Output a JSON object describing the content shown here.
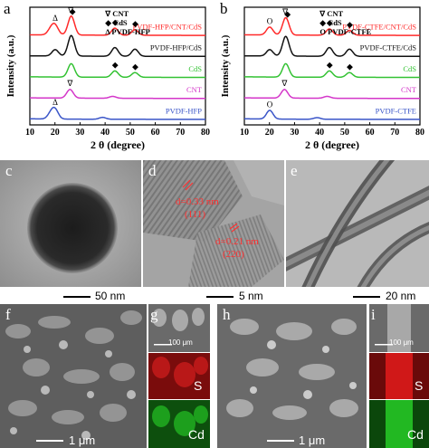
{
  "figure": {
    "panels": {
      "a": "a",
      "b": "b",
      "c": "c",
      "d": "d",
      "e": "e",
      "f": "f",
      "g": "g",
      "h": "h",
      "i": "i"
    },
    "scalebars": {
      "c": "50 nm",
      "d": "5 nm",
      "e": "20 nm",
      "f": "1 μm",
      "g": "100 μm",
      "h": "1 μm",
      "i": "100 μm"
    },
    "hrtem": {
      "label1": "d=0.33 nm",
      "plane1": "(111)",
      "label2": "d=0.21 nm",
      "plane2": "(220)"
    },
    "element_maps": {
      "s": "S",
      "cd": "Cd"
    },
    "colors": {
      "red": "#ff2a2a",
      "black": "#111111",
      "green": "#33c233",
      "magenta": "#d436c9",
      "blue": "#3a55c8",
      "sulfur_map": "#c01a1a",
      "cadmium_map": "#1fa81f"
    }
  },
  "chart_data": [
    {
      "type": "line",
      "panel": "a",
      "xlabel": "2 θ (degree)",
      "ylabel": "Intensity (a.u.)",
      "xlim": [
        10,
        80
      ],
      "xticks": [
        10,
        20,
        30,
        40,
        50,
        60,
        70,
        80
      ],
      "legend": [
        "CNT",
        "CdS",
        "PVDF-HFP"
      ],
      "legend_symbols": [
        "∇",
        "◆",
        "Δ"
      ],
      "series": [
        {
          "name": "PVDF-HFP/CNT/CdS",
          "color": "#ff2a2a",
          "offset": 4,
          "peaks": [
            [
              18.4,
              0.35
            ],
            [
              20.1,
              0.55
            ],
            [
              26.5,
              1.2
            ],
            [
              43.9,
              0.45
            ],
            [
              51.9,
              0.35
            ]
          ]
        },
        {
          "name": "PVDF-HFP/CdS",
          "color": "#111111",
          "offset": 3,
          "peaks": [
            [
              20.1,
              0.4
            ],
            [
              26.5,
              1.3
            ],
            [
              43.9,
              0.55
            ],
            [
              51.9,
              0.45
            ]
          ]
        },
        {
          "name": "CdS",
          "color": "#33c233",
          "offset": 2,
          "peaks": [
            [
              26.5,
              0.85
            ],
            [
              43.9,
              0.4
            ],
            [
              51.9,
              0.3
            ]
          ]
        },
        {
          "name": "CNT",
          "color": "#d436c9",
          "offset": 1,
          "peaks": [
            [
              26.0,
              0.55
            ],
            [
              43.0,
              0.12
            ]
          ]
        },
        {
          "name": "PVDF-HFP",
          "color": "#3a55c8",
          "offset": 0,
          "peaks": [
            [
              18.4,
              0.35
            ],
            [
              20.1,
              0.55
            ],
            [
              39.0,
              0.12
            ]
          ]
        }
      ],
      "markers": [
        {
          "symbol": "Δ",
          "x": 20.1,
          "series": "PVDF-HFP/CNT/CdS"
        },
        {
          "symbol": "∇",
          "x": 26.3,
          "series": "PVDF-HFP/CNT/CdS"
        },
        {
          "symbol": "◆",
          "x": 27.0,
          "series": "PVDF-HFP/CNT/CdS"
        },
        {
          "symbol": "◆",
          "x": 44.0,
          "series": "PVDF-HFP/CNT/CdS"
        },
        {
          "symbol": "◆",
          "x": 52.0,
          "series": "PVDF-HFP/CNT/CdS"
        },
        {
          "symbol": "◆",
          "x": 44.0,
          "series": "CdS"
        },
        {
          "symbol": "◆",
          "x": 52.0,
          "series": "CdS"
        },
        {
          "symbol": "∇",
          "x": 26.0,
          "series": "CNT"
        },
        {
          "symbol": "Δ",
          "x": 20.1,
          "series": "PVDF-HFP"
        }
      ]
    },
    {
      "type": "line",
      "panel": "b",
      "xlabel": "2 θ (degree)",
      "ylabel": "Intensity (a.u.)",
      "xlim": [
        10,
        80
      ],
      "xticks": [
        10,
        20,
        30,
        40,
        50,
        60,
        70,
        80
      ],
      "legend": [
        "CNT",
        "CdS",
        "PVDF-CTFE"
      ],
      "legend_symbols": [
        "∇",
        "◆",
        "O"
      ],
      "series": [
        {
          "name": "PVDF-CTFE/CNT/CdS",
          "color": "#ff2a2a",
          "offset": 4,
          "peaks": [
            [
              20.1,
              0.5
            ],
            [
              26.5,
              1.1
            ],
            [
              43.9,
              0.4
            ],
            [
              51.9,
              0.3
            ]
          ]
        },
        {
          "name": "PVDF-CTFE/CdS",
          "color": "#111111",
          "offset": 3,
          "peaks": [
            [
              20.1,
              0.4
            ],
            [
              26.5,
              1.25
            ],
            [
              43.9,
              0.55
            ],
            [
              51.9,
              0.45
            ]
          ]
        },
        {
          "name": "CdS",
          "color": "#33c233",
          "offset": 2,
          "peaks": [
            [
              26.5,
              0.85
            ],
            [
              43.9,
              0.4
            ],
            [
              51.9,
              0.3
            ]
          ]
        },
        {
          "name": "CNT",
          "color": "#d436c9",
          "offset": 1,
          "peaks": [
            [
              26.0,
              0.55
            ],
            [
              43.0,
              0.12
            ]
          ]
        },
        {
          "name": "PVDF-CTFE",
          "color": "#3a55c8",
          "offset": 0,
          "peaks": [
            [
              20.1,
              0.55
            ],
            [
              39.0,
              0.1
            ]
          ]
        }
      ],
      "markers": [
        {
          "symbol": "O",
          "x": 20.1,
          "series": "PVDF-CTFE/CNT/CdS"
        },
        {
          "symbol": "∇",
          "x": 26.3,
          "series": "PVDF-CTFE/CNT/CdS"
        },
        {
          "symbol": "◆",
          "x": 27.2,
          "series": "PVDF-CTFE/CNT/CdS"
        },
        {
          "symbol": "◆",
          "x": 44.0,
          "series": "PVDF-CTFE/CNT/CdS"
        },
        {
          "symbol": "◆",
          "x": 52.0,
          "series": "PVDF-CTFE/CNT/CdS"
        },
        {
          "symbol": "◆",
          "x": 44.0,
          "series": "CdS"
        },
        {
          "symbol": "◆",
          "x": 52.0,
          "series": "CdS"
        },
        {
          "symbol": "∇",
          "x": 26.0,
          "series": "CNT"
        },
        {
          "symbol": "O",
          "x": 20.1,
          "series": "PVDF-CTFE"
        }
      ]
    }
  ]
}
